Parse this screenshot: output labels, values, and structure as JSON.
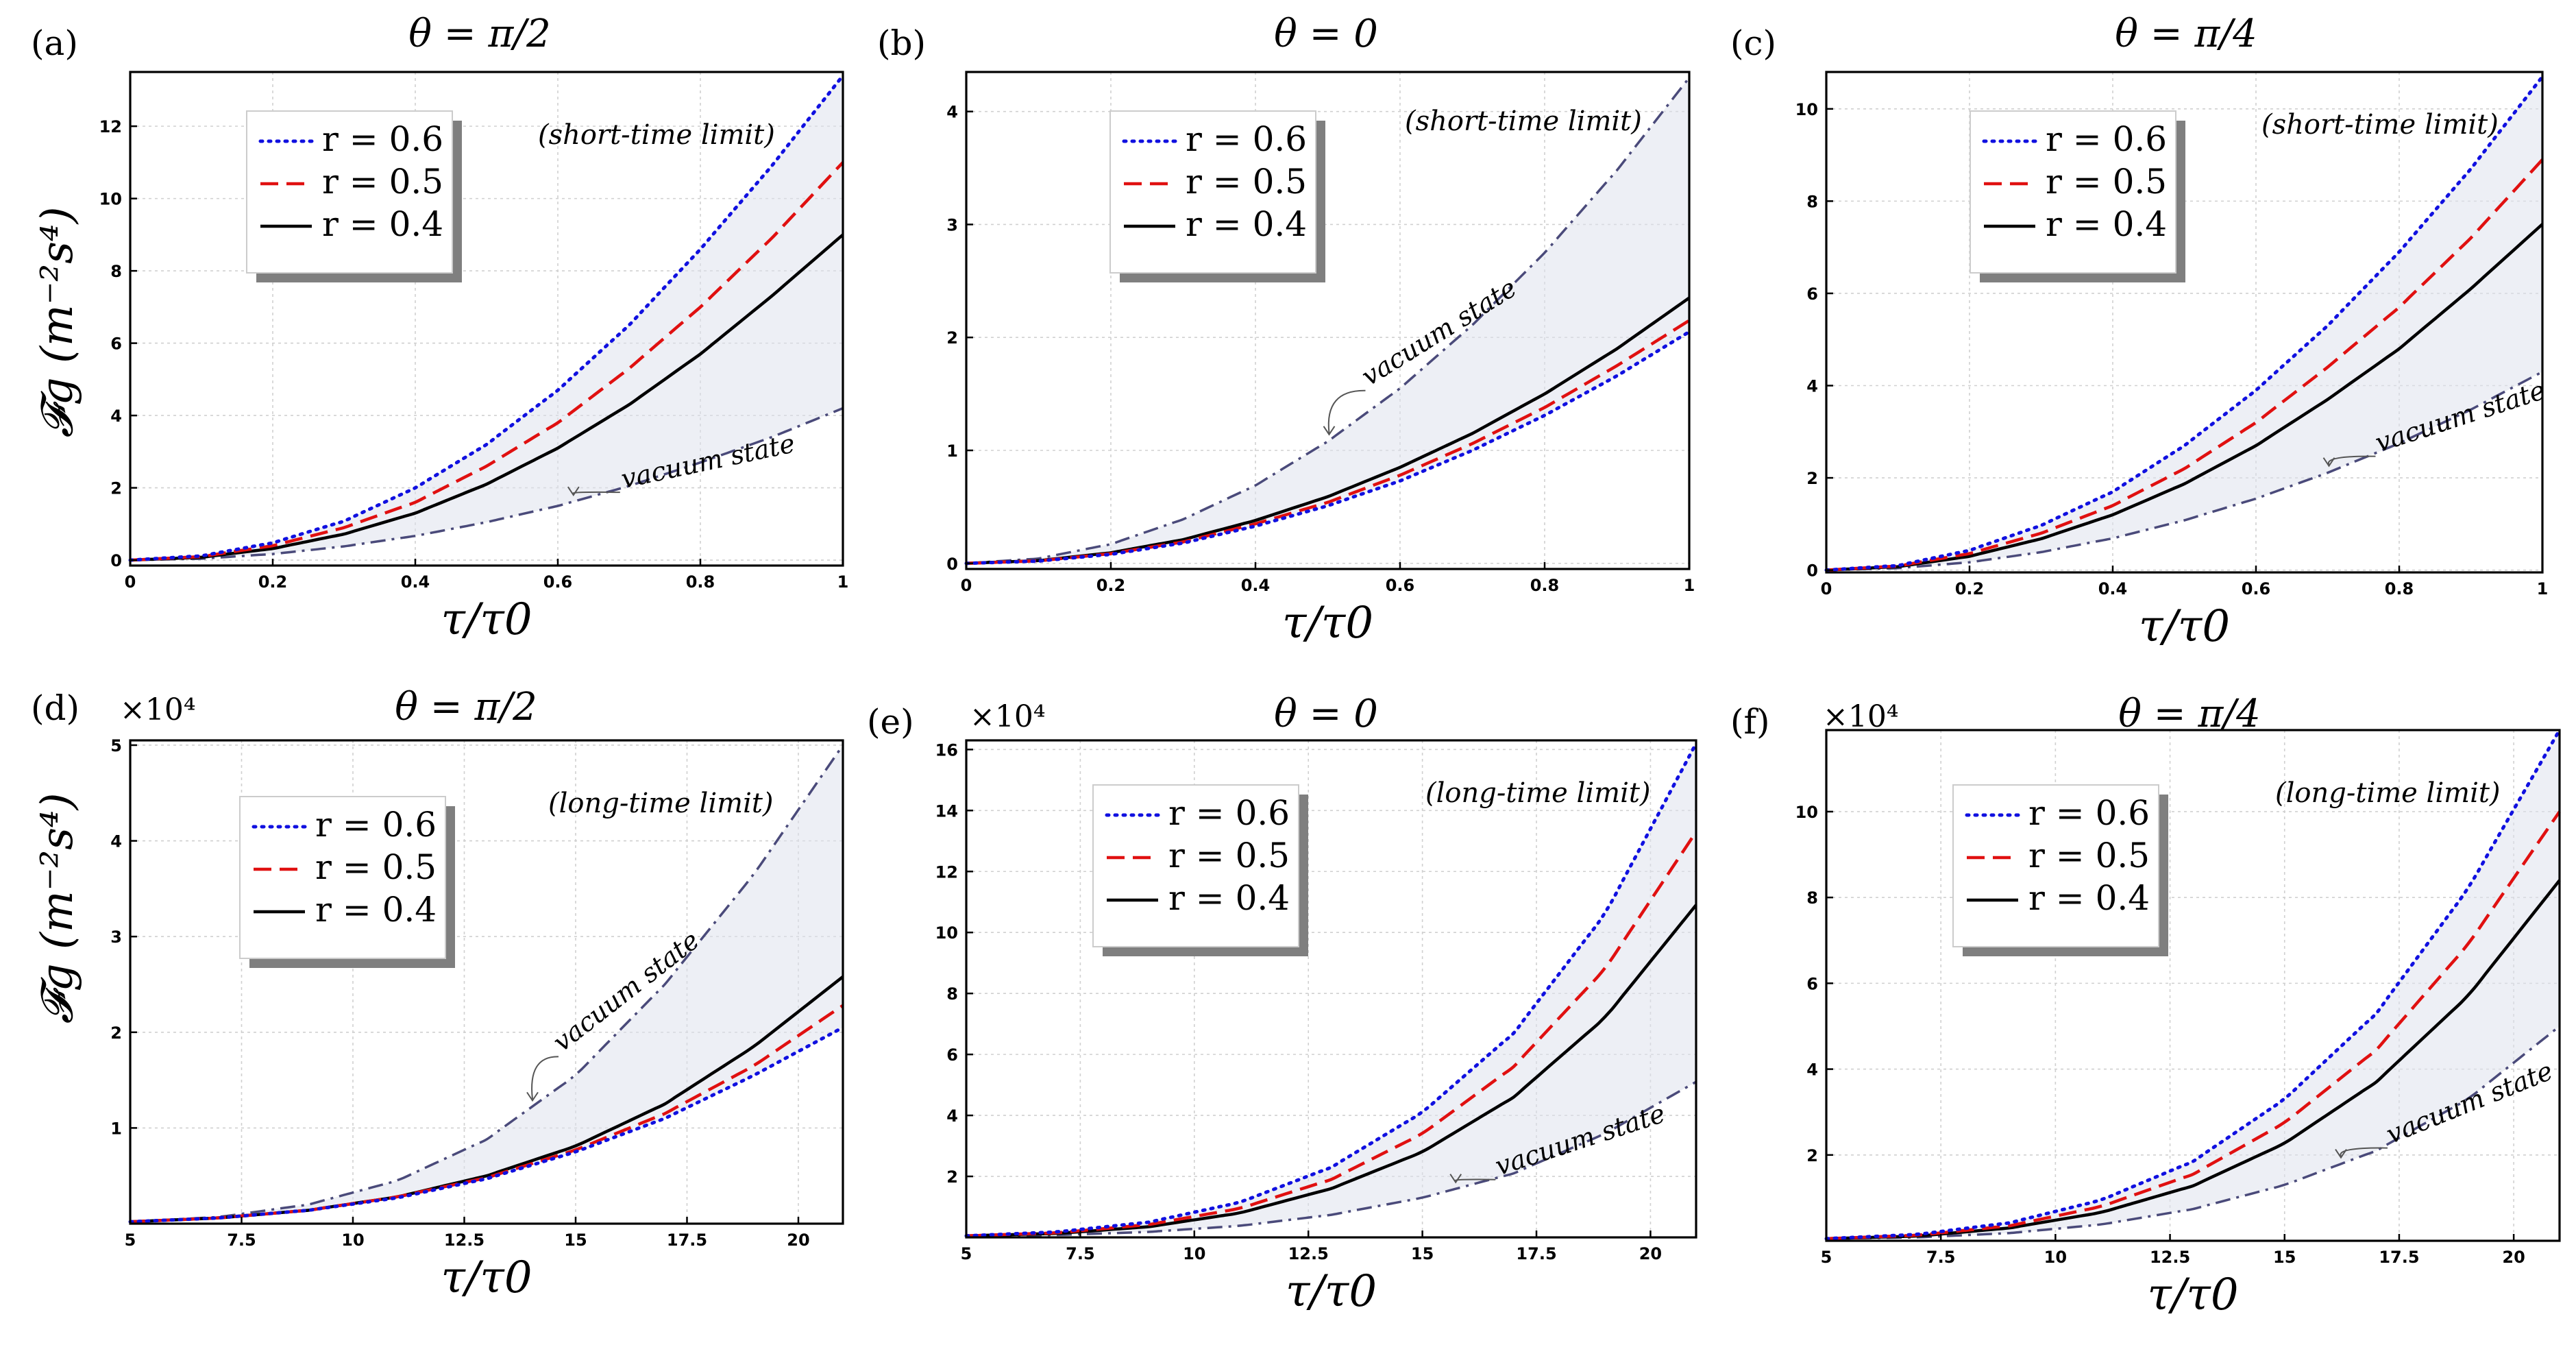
{
  "figure": {
    "ylabel": "𝓕g (m⁻²s⁴)",
    "xlabel": "τ/τ0",
    "colors": {
      "r06": "#1010e0",
      "r05": "#e01010",
      "r04": "#000000",
      "vacuum": "#4a4a7a",
      "fill": "#dfe2ec"
    }
  },
  "chart_data": [
    {
      "panel": "(a)",
      "title": "θ = π/2",
      "type": "line",
      "regime": "(short-time limit)",
      "xlim": [
        0,
        1
      ],
      "ylim": [
        -0.15,
        13.5
      ],
      "xticks": [
        0,
        0.2,
        0.4,
        0.6,
        0.8,
        1
      ],
      "xtick_labels": [
        "0",
        "0.2",
        "0.4",
        "0.6",
        "0.8",
        "1"
      ],
      "yticks": [
        0,
        2,
        4,
        6,
        8,
        10,
        12
      ],
      "ytick_labels": [
        "0",
        "2",
        "4",
        "6",
        "8",
        "10",
        "12"
      ],
      "scale_label": "",
      "series": [
        {
          "name": "r = 0.6",
          "style": "dotted",
          "x": [
            0,
            0.1,
            0.2,
            0.3,
            0.4,
            0.5,
            0.6,
            0.7,
            0.8,
            0.9,
            1.0
          ],
          "y": [
            0,
            0.12,
            0.48,
            1.08,
            2.0,
            3.2,
            4.7,
            6.5,
            8.6,
            10.9,
            13.4
          ]
        },
        {
          "name": "r = 0.5",
          "style": "dashed",
          "x": [
            0,
            0.1,
            0.2,
            0.3,
            0.4,
            0.5,
            0.6,
            0.7,
            0.8,
            0.9,
            1.0
          ],
          "y": [
            0,
            0.1,
            0.4,
            0.9,
            1.6,
            2.6,
            3.8,
            5.3,
            7.0,
            8.9,
            11.0
          ]
        },
        {
          "name": "r = 0.4",
          "style": "solid",
          "x": [
            0,
            0.1,
            0.2,
            0.3,
            0.4,
            0.5,
            0.6,
            0.7,
            0.8,
            0.9,
            1.0
          ],
          "y": [
            0,
            0.08,
            0.32,
            0.72,
            1.3,
            2.1,
            3.1,
            4.3,
            5.7,
            7.3,
            9.0
          ]
        },
        {
          "name": "vacuum state",
          "style": "dashdot",
          "x": [
            0,
            0.1,
            0.2,
            0.3,
            0.4,
            0.5,
            0.6,
            0.7,
            0.8,
            0.9,
            1.0
          ],
          "y": [
            0,
            0.04,
            0.17,
            0.38,
            0.67,
            1.05,
            1.5,
            2.05,
            2.7,
            3.4,
            4.2
          ]
        }
      ],
      "vacuum_label": "vacuum state"
    },
    {
      "panel": "(b)",
      "title": "θ = 0",
      "type": "line",
      "regime": "(short-time limit)",
      "xlim": [
        0,
        1
      ],
      "ylim": [
        -0.05,
        4.35
      ],
      "xticks": [
        0,
        0.2,
        0.4,
        0.6,
        0.8,
        1
      ],
      "xtick_labels": [
        "0",
        "0.2",
        "0.4",
        "0.6",
        "0.8",
        "1"
      ],
      "yticks": [
        0,
        1,
        2,
        3,
        4
      ],
      "ytick_labels": [
        "0",
        "1",
        "2",
        "3",
        "4"
      ],
      "scale_label": "",
      "series": [
        {
          "name": "r = 0.6",
          "style": "dotted",
          "x": [
            0,
            0.1,
            0.2,
            0.3,
            0.4,
            0.5,
            0.6,
            0.7,
            0.8,
            0.9,
            1.0
          ],
          "y": [
            0,
            0.02,
            0.08,
            0.18,
            0.33,
            0.51,
            0.73,
            1.0,
            1.31,
            1.66,
            2.05
          ]
        },
        {
          "name": "r = 0.5",
          "style": "dashed",
          "x": [
            0,
            0.1,
            0.2,
            0.3,
            0.4,
            0.5,
            0.6,
            0.7,
            0.8,
            0.9,
            1.0
          ],
          "y": [
            0,
            0.022,
            0.086,
            0.19,
            0.35,
            0.54,
            0.78,
            1.06,
            1.38,
            1.75,
            2.15
          ]
        },
        {
          "name": "r = 0.4",
          "style": "solid",
          "x": [
            0,
            0.1,
            0.2,
            0.3,
            0.4,
            0.5,
            0.6,
            0.7,
            0.8,
            0.9,
            1.0
          ],
          "y": [
            0,
            0.024,
            0.094,
            0.21,
            0.38,
            0.59,
            0.85,
            1.15,
            1.5,
            1.9,
            2.35
          ]
        },
        {
          "name": "vacuum state",
          "style": "dashdot",
          "x": [
            0,
            0.1,
            0.2,
            0.3,
            0.4,
            0.5,
            0.6,
            0.7,
            0.8,
            0.9,
            1.0
          ],
          "y": [
            0,
            0.043,
            0.17,
            0.39,
            0.69,
            1.08,
            1.55,
            2.11,
            2.75,
            3.48,
            4.3
          ]
        }
      ],
      "vacuum_label": "vacuum state"
    },
    {
      "panel": "(c)",
      "title": "θ = π/4",
      "type": "line",
      "regime": "(short-time limit)",
      "xlim": [
        0,
        1
      ],
      "ylim": [
        -0.05,
        10.8
      ],
      "xticks": [
        0,
        0.2,
        0.4,
        0.6,
        0.8,
        1
      ],
      "xtick_labels": [
        "0",
        "0.2",
        "0.4",
        "0.6",
        "0.8",
        "1"
      ],
      "yticks": [
        0,
        2,
        4,
        6,
        8,
        10
      ],
      "ytick_labels": [
        "0",
        "2",
        "4",
        "6",
        "8",
        "10"
      ],
      "scale_label": "",
      "series": [
        {
          "name": "r = 0.6",
          "style": "dotted",
          "x": [
            0,
            0.1,
            0.2,
            0.3,
            0.4,
            0.5,
            0.6,
            0.7,
            0.8,
            0.9,
            1.0
          ],
          "y": [
            0,
            0.1,
            0.43,
            0.97,
            1.7,
            2.7,
            3.9,
            5.3,
            6.9,
            8.7,
            10.7
          ]
        },
        {
          "name": "r = 0.5",
          "style": "dashed",
          "x": [
            0,
            0.1,
            0.2,
            0.3,
            0.4,
            0.5,
            0.6,
            0.7,
            0.8,
            0.9,
            1.0
          ],
          "y": [
            0,
            0.09,
            0.36,
            0.8,
            1.4,
            2.2,
            3.2,
            4.4,
            5.7,
            7.2,
            8.9
          ]
        },
        {
          "name": "r = 0.4",
          "style": "solid",
          "x": [
            0,
            0.1,
            0.2,
            0.3,
            0.4,
            0.5,
            0.6,
            0.7,
            0.8,
            0.9,
            1.0
          ],
          "y": [
            0,
            0.075,
            0.3,
            0.68,
            1.2,
            1.87,
            2.7,
            3.7,
            4.8,
            6.1,
            7.5
          ]
        },
        {
          "name": "vacuum state",
          "style": "dashdot",
          "x": [
            0,
            0.1,
            0.2,
            0.3,
            0.4,
            0.5,
            0.6,
            0.7,
            0.8,
            0.9,
            1.0
          ],
          "y": [
            0,
            0.043,
            0.17,
            0.39,
            0.69,
            1.08,
            1.55,
            2.11,
            2.75,
            3.48,
            4.3
          ]
        }
      ],
      "vacuum_label": "vacuum state"
    },
    {
      "panel": "(d)",
      "title": "θ = π/2",
      "type": "line",
      "regime": "(long-time limit)",
      "xlim": [
        5,
        21
      ],
      "ylim": [
        0,
        5.05
      ],
      "xticks": [
        5,
        7.5,
        10,
        12.5,
        15,
        17.5,
        20
      ],
      "xtick_labels": [
        "5",
        "7.5",
        "10",
        "12.5",
        "15",
        "17.5",
        "20"
      ],
      "yticks": [
        1,
        2,
        3,
        4,
        5
      ],
      "ytick_labels": [
        "1",
        "2",
        "3",
        "4",
        "5"
      ],
      "scale_label": "×10⁴",
      "series": [
        {
          "name": "r = 0.6",
          "style": "dotted",
          "x": [
            5,
            7,
            9,
            11,
            13,
            15,
            17,
            19,
            21
          ],
          "y": [
            0.02,
            0.06,
            0.14,
            0.27,
            0.47,
            0.75,
            1.1,
            1.55,
            2.05
          ]
        },
        {
          "name": "r = 0.5",
          "style": "dashed",
          "x": [
            5,
            7,
            9,
            11,
            13,
            15,
            17,
            19,
            21
          ],
          "y": [
            0.02,
            0.06,
            0.14,
            0.28,
            0.48,
            0.77,
            1.15,
            1.65,
            2.28
          ]
        },
        {
          "name": "r = 0.4",
          "style": "solid",
          "x": [
            5,
            7,
            9,
            11,
            13,
            15,
            17,
            19,
            21
          ],
          "y": [
            0.02,
            0.06,
            0.14,
            0.28,
            0.5,
            0.81,
            1.25,
            1.85,
            2.58
          ]
        },
        {
          "name": "vacuum state",
          "style": "dashdot",
          "x": [
            5,
            7,
            9,
            11,
            13,
            15,
            17,
            19,
            21
          ],
          "y": [
            0.02,
            0.07,
            0.2,
            0.45,
            0.88,
            1.55,
            2.5,
            3.65,
            5.0
          ]
        }
      ],
      "vacuum_label": "vacuum state"
    },
    {
      "panel": "(e)",
      "title": "θ = 0",
      "type": "line",
      "regime": "(long-time limit)",
      "xlim": [
        5,
        21
      ],
      "ylim": [
        0,
        16.3
      ],
      "xticks": [
        5,
        7.5,
        10,
        12.5,
        15,
        17.5,
        20
      ],
      "xtick_labels": [
        "5",
        "7.5",
        "10",
        "12.5",
        "15",
        "17.5",
        "20"
      ],
      "yticks": [
        2,
        4,
        6,
        8,
        10,
        12,
        14,
        16
      ],
      "ytick_labels": [
        "2",
        "4",
        "6",
        "8",
        "10",
        "12",
        "14",
        "16"
      ],
      "scale_label": "×10⁴",
      "series": [
        {
          "name": "r = 0.6",
          "style": "dotted",
          "x": [
            5,
            7,
            9,
            11,
            13,
            15,
            17,
            19,
            21
          ],
          "y": [
            0.05,
            0.18,
            0.5,
            1.15,
            2.3,
            4.1,
            6.7,
            10.6,
            16.2
          ]
        },
        {
          "name": "r = 0.5",
          "style": "dashed",
          "x": [
            5,
            7,
            9,
            11,
            13,
            15,
            17,
            19,
            21
          ],
          "y": [
            0.05,
            0.15,
            0.42,
            0.95,
            1.9,
            3.4,
            5.6,
            8.8,
            13.3
          ]
        },
        {
          "name": "r = 0.4",
          "style": "solid",
          "x": [
            5,
            7,
            9,
            11,
            13,
            15,
            17,
            19,
            21
          ],
          "y": [
            0.05,
            0.13,
            0.35,
            0.8,
            1.6,
            2.8,
            4.6,
            7.2,
            10.9
          ]
        },
        {
          "name": "vacuum state",
          "style": "dashdot",
          "x": [
            5,
            7,
            9,
            11,
            13,
            15,
            17,
            19,
            21
          ],
          "y": [
            0.05,
            0.08,
            0.18,
            0.38,
            0.74,
            1.3,
            2.1,
            3.4,
            5.1
          ]
        }
      ],
      "vacuum_label": "vacuum state"
    },
    {
      "panel": "(f)",
      "title": "θ = π/4",
      "type": "line",
      "regime": "(long-time limit)",
      "xlim": [
        5,
        21
      ],
      "ylim": [
        0,
        11.9
      ],
      "xticks": [
        5,
        7.5,
        10,
        12.5,
        15,
        17.5,
        20
      ],
      "xtick_labels": [
        "5",
        "7.5",
        "10",
        "12.5",
        "15",
        "17.5",
        "20"
      ],
      "yticks": [
        2,
        4,
        6,
        8,
        10
      ],
      "ytick_labels": [
        "2",
        "4",
        "6",
        "8",
        "10"
      ],
      "scale_label": "×10⁴",
      "series": [
        {
          "name": "r = 0.6",
          "style": "dotted",
          "x": [
            5,
            7,
            9,
            11,
            13,
            15,
            17,
            19,
            21
          ],
          "y": [
            0.05,
            0.15,
            0.42,
            0.95,
            1.85,
            3.3,
            5.3,
            8.2,
            11.9
          ]
        },
        {
          "name": "r = 0.5",
          "style": "dashed",
          "x": [
            5,
            7,
            9,
            11,
            13,
            15,
            17,
            19,
            21
          ],
          "y": [
            0.05,
            0.13,
            0.35,
            0.8,
            1.55,
            2.75,
            4.45,
            6.9,
            10.0
          ]
        },
        {
          "name": "r = 0.4",
          "style": "solid",
          "x": [
            5,
            7,
            9,
            11,
            13,
            15,
            17,
            19,
            21
          ],
          "y": [
            0.05,
            0.11,
            0.3,
            0.66,
            1.28,
            2.27,
            3.7,
            5.7,
            8.4
          ]
        },
        {
          "name": "vacuum state",
          "style": "dashdot",
          "x": [
            5,
            7,
            9,
            11,
            13,
            15,
            17,
            19,
            21
          ],
          "y": [
            0.05,
            0.08,
            0.18,
            0.38,
            0.74,
            1.3,
            2.1,
            3.3,
            5.0
          ]
        }
      ],
      "vacuum_label": "vacuum state"
    }
  ]
}
